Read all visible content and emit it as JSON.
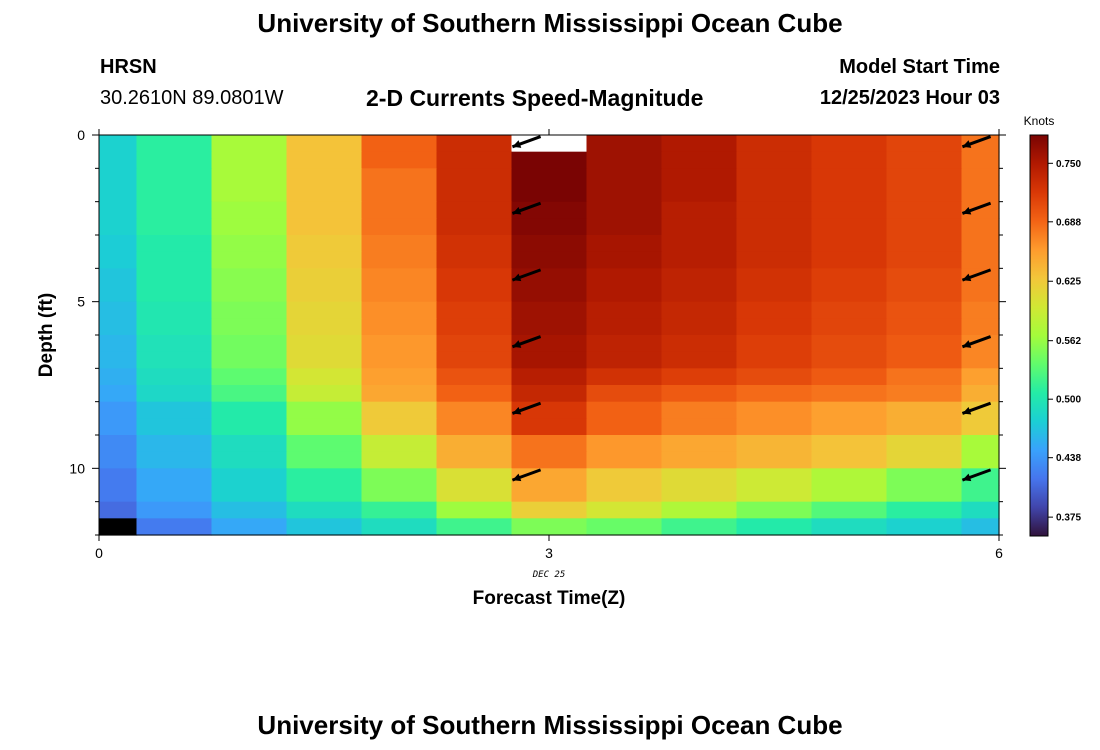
{
  "header": {
    "title": "University of Southern Mississippi Ocean Cube",
    "station_id": "HRSN",
    "station_coords": "30.2610N  89.0801W",
    "subtitle": "2-D Currents Speed-Magnitude",
    "model_start_label": "Model Start Time",
    "model_start_value": "12/25/2023 Hour 03"
  },
  "footer": {
    "title": "University of Southern Mississippi Ocean Cube"
  },
  "chart_data": {
    "type": "heatmap",
    "xlabel": "Forecast Time(Z)",
    "ylabel": "Depth (ft)",
    "x_date_label": "DEC 25",
    "xlim": [
      0,
      6
    ],
    "ylim": [
      12,
      0
    ],
    "xticks": [
      0,
      3,
      6
    ],
    "yticks": [
      0,
      5,
      10
    ],
    "x_cell_edges": [
      0,
      0.25,
      0.75,
      1.25,
      1.75,
      2.25,
      2.75,
      3.25,
      3.75,
      4.25,
      4.75,
      5.25,
      5.75,
      6
    ],
    "y_cell_edges": [
      0,
      0.5,
      1,
      1.5,
      2,
      2.5,
      3,
      3.5,
      4,
      4.5,
      5,
      5.5,
      6,
      6.5,
      7,
      7.5,
      8,
      8.5,
      9,
      9.5,
      10,
      10.5,
      11,
      11.5,
      12
    ],
    "values": [
      [
        0.48,
        0.51,
        0.57,
        0.63,
        0.69,
        0.73,
        null,
        0.76,
        0.75,
        0.73,
        0.72,
        0.71,
        0.68
      ],
      [
        0.48,
        0.51,
        0.57,
        0.63,
        0.69,
        0.73,
        0.78,
        0.76,
        0.75,
        0.73,
        0.72,
        0.71,
        0.68
      ],
      [
        0.48,
        0.51,
        0.57,
        0.63,
        0.68,
        0.73,
        0.78,
        0.76,
        0.75,
        0.73,
        0.72,
        0.71,
        0.68
      ],
      [
        0.48,
        0.51,
        0.57,
        0.63,
        0.68,
        0.73,
        0.78,
        0.76,
        0.75,
        0.73,
        0.72,
        0.71,
        0.68
      ],
      [
        0.48,
        0.51,
        0.565,
        0.63,
        0.68,
        0.73,
        0.775,
        0.76,
        0.745,
        0.73,
        0.72,
        0.71,
        0.68
      ],
      [
        0.48,
        0.51,
        0.565,
        0.63,
        0.68,
        0.73,
        0.775,
        0.76,
        0.745,
        0.73,
        0.72,
        0.71,
        0.68
      ],
      [
        0.475,
        0.505,
        0.56,
        0.625,
        0.675,
        0.725,
        0.77,
        0.755,
        0.745,
        0.73,
        0.72,
        0.71,
        0.68
      ],
      [
        0.475,
        0.505,
        0.56,
        0.625,
        0.675,
        0.725,
        0.77,
        0.755,
        0.745,
        0.73,
        0.72,
        0.71,
        0.68
      ],
      [
        0.47,
        0.505,
        0.555,
        0.62,
        0.67,
        0.72,
        0.765,
        0.75,
        0.74,
        0.725,
        0.715,
        0.705,
        0.68
      ],
      [
        0.47,
        0.505,
        0.555,
        0.62,
        0.67,
        0.72,
        0.765,
        0.75,
        0.74,
        0.725,
        0.715,
        0.705,
        0.68
      ],
      [
        0.465,
        0.5,
        0.55,
        0.615,
        0.665,
        0.715,
        0.76,
        0.745,
        0.735,
        0.72,
        0.71,
        0.7,
        0.675
      ],
      [
        0.465,
        0.5,
        0.55,
        0.615,
        0.665,
        0.715,
        0.76,
        0.745,
        0.735,
        0.72,
        0.71,
        0.7,
        0.675
      ],
      [
        0.46,
        0.495,
        0.545,
        0.61,
        0.66,
        0.71,
        0.755,
        0.74,
        0.73,
        0.715,
        0.705,
        0.695,
        0.67
      ],
      [
        0.46,
        0.495,
        0.545,
        0.61,
        0.66,
        0.71,
        0.755,
        0.74,
        0.73,
        0.715,
        0.705,
        0.695,
        0.67
      ],
      [
        0.455,
        0.49,
        0.535,
        0.6,
        0.655,
        0.7,
        0.745,
        0.725,
        0.715,
        0.705,
        0.695,
        0.68,
        0.655
      ],
      [
        0.45,
        0.485,
        0.525,
        0.59,
        0.65,
        0.69,
        0.735,
        0.705,
        0.695,
        0.685,
        0.68,
        0.675,
        0.645
      ],
      [
        0.44,
        0.47,
        0.505,
        0.56,
        0.625,
        0.67,
        0.72,
        0.69,
        0.675,
        0.665,
        0.655,
        0.645,
        0.625
      ],
      [
        0.44,
        0.47,
        0.505,
        0.56,
        0.625,
        0.67,
        0.72,
        0.69,
        0.675,
        0.665,
        0.655,
        0.645,
        0.625
      ],
      [
        0.43,
        0.46,
        0.49,
        0.535,
        0.59,
        0.645,
        0.68,
        0.66,
        0.65,
        0.64,
        0.63,
        0.615,
        0.57
      ],
      [
        0.43,
        0.46,
        0.49,
        0.535,
        0.59,
        0.645,
        0.68,
        0.66,
        0.65,
        0.64,
        0.63,
        0.615,
        0.57
      ],
      [
        0.42,
        0.45,
        0.48,
        0.51,
        0.55,
        0.605,
        0.65,
        0.625,
        0.61,
        0.595,
        0.575,
        0.55,
        0.52
      ],
      [
        0.42,
        0.45,
        0.48,
        0.51,
        0.55,
        0.605,
        0.65,
        0.625,
        0.61,
        0.595,
        0.575,
        0.55,
        0.52
      ],
      [
        0.41,
        0.44,
        0.465,
        0.49,
        0.515,
        0.565,
        0.62,
        0.6,
        0.575,
        0.55,
        0.53,
        0.51,
        0.49
      ],
      [
        null,
        0.42,
        0.45,
        0.47,
        0.49,
        0.52,
        0.55,
        0.54,
        0.52,
        0.505,
        0.49,
        0.48,
        0.465
      ]
    ],
    "missing_color": "#000000",
    "vectors": [
      {
        "x": 2.85,
        "depth": 0.2,
        "angle_deg": 200
      },
      {
        "x": 2.85,
        "depth": 2.2,
        "angle_deg": 200
      },
      {
        "x": 2.85,
        "depth": 4.2,
        "angle_deg": 200
      },
      {
        "x": 2.85,
        "depth": 6.2,
        "angle_deg": 200
      },
      {
        "x": 2.85,
        "depth": 8.2,
        "angle_deg": 200
      },
      {
        "x": 2.85,
        "depth": 10.2,
        "angle_deg": 200
      },
      {
        "x": 5.85,
        "depth": 0.2,
        "angle_deg": 200
      },
      {
        "x": 5.85,
        "depth": 2.2,
        "angle_deg": 200
      },
      {
        "x": 5.85,
        "depth": 4.2,
        "angle_deg": 200
      },
      {
        "x": 5.85,
        "depth": 6.2,
        "angle_deg": 200
      },
      {
        "x": 5.85,
        "depth": 8.2,
        "angle_deg": 200
      },
      {
        "x": 5.85,
        "depth": 10.2,
        "angle_deg": 200
      }
    ],
    "colorbar": {
      "unit": "Knots",
      "min": 0.355,
      "max": 0.78,
      "ticks": [
        0.375,
        0.438,
        0.5,
        0.562,
        0.625,
        0.688,
        0.75
      ],
      "tick_labels": [
        "0.375",
        "0.438",
        "0.500",
        "0.562",
        "0.625",
        "0.688",
        "0.750"
      ],
      "colormap": [
        "#30123b",
        "#4145ab",
        "#4675ed",
        "#39a2fc",
        "#1bcfd4",
        "#24eca6",
        "#61fc6c",
        "#a4fc3b",
        "#d1e834",
        "#f3c63a",
        "#fe9b2d",
        "#f36315",
        "#d93806",
        "#b11901",
        "#7a0403"
      ]
    }
  }
}
